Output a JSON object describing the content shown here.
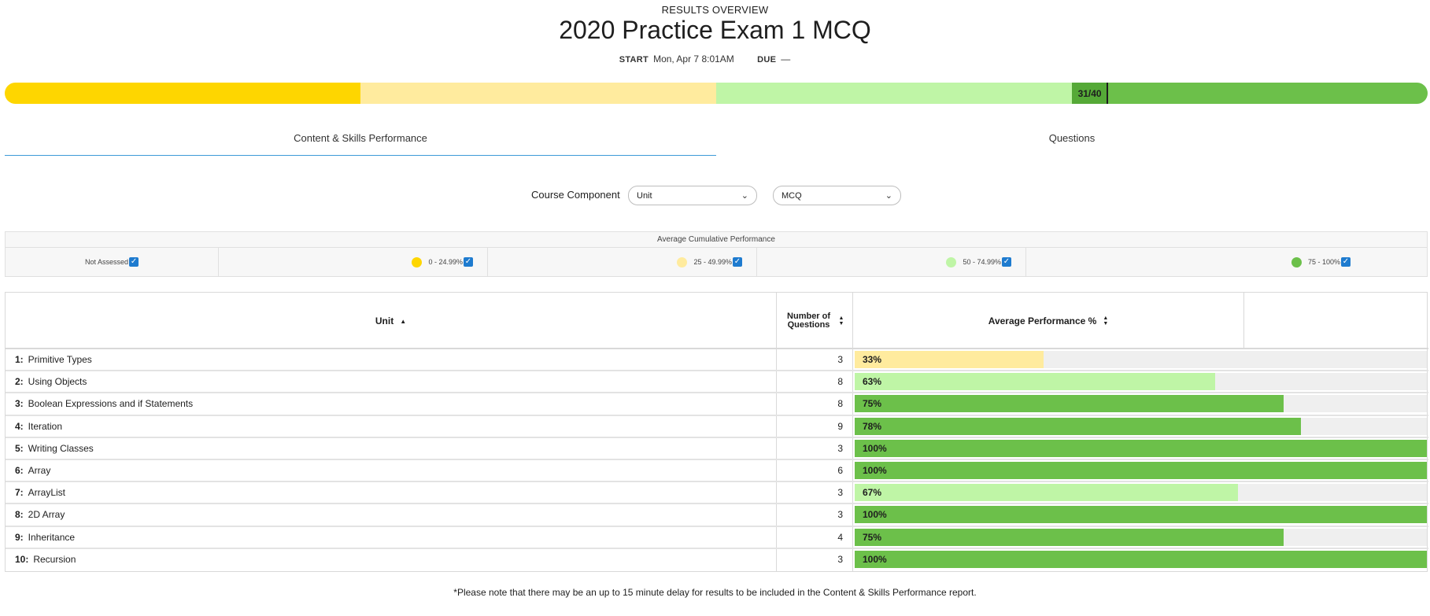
{
  "header": {
    "eyebrow": "RESULTS OVERVIEW",
    "title": "2020 Practice Exam 1 MCQ",
    "start_label": "START",
    "start_value": "Mon, Apr 7 8:01AM",
    "due_label": "DUE",
    "due_value": "—"
  },
  "progress": {
    "score_label": "31/40",
    "score": 31,
    "total": 40,
    "colors": [
      "#fed600",
      "#ffeb9e",
      "#bff5a6",
      "#6cc04a"
    ]
  },
  "tabs": [
    {
      "label": "Content & Skills Performance",
      "active": true
    },
    {
      "label": "Questions",
      "active": false
    }
  ],
  "filters": {
    "label": "Course Component",
    "unit_select": "Unit",
    "type_select": "MCQ"
  },
  "legend": {
    "title": "Average Cumulative Performance",
    "items": [
      {
        "label": "Not Assessed"
      },
      {
        "label": "0 - 24.99%",
        "color": "#fed600"
      },
      {
        "label": "25 - 49.99%",
        "color": "#ffeb9e"
      },
      {
        "label": "50 - 74.99%",
        "color": "#bff5a6"
      },
      {
        "label": "75 - 100%",
        "color": "#6cc04a"
      }
    ]
  },
  "table": {
    "headers": {
      "unit": "Unit",
      "num_questions": "Number of Questions",
      "avg_perf": "Average Performance %"
    },
    "rows": [
      {
        "num": "1:",
        "name": "Primitive Types",
        "questions": "3",
        "pct_label": "33%",
        "pct": 33
      },
      {
        "num": "2:",
        "name": "Using Objects",
        "questions": "8",
        "pct_label": "63%",
        "pct": 63
      },
      {
        "num": "3:",
        "name": "Boolean Expressions and if Statements",
        "questions": "8",
        "pct_label": "75%",
        "pct": 75
      },
      {
        "num": "4:",
        "name": "Iteration",
        "questions": "9",
        "pct_label": "78%",
        "pct": 78
      },
      {
        "num": "5:",
        "name": "Writing Classes",
        "questions": "3",
        "pct_label": "100%",
        "pct": 100
      },
      {
        "num": "6:",
        "name": "Array",
        "questions": "6",
        "pct_label": "100%",
        "pct": 100
      },
      {
        "num": "7:",
        "name": "ArrayList",
        "questions": "3",
        "pct_label": "67%",
        "pct": 67
      },
      {
        "num": "8:",
        "name": "2D Array",
        "questions": "3",
        "pct_label": "100%",
        "pct": 100
      },
      {
        "num": "9:",
        "name": "Inheritance",
        "questions": "4",
        "pct_label": "75%",
        "pct": 75
      },
      {
        "num": "10:",
        "name": "Recursion",
        "questions": "3",
        "pct_label": "100%",
        "pct": 100
      }
    ]
  },
  "footer": {
    "note": "*Please note that there may be an up to 15 minute delay for results to be included in the Content & Skills Performance report."
  }
}
